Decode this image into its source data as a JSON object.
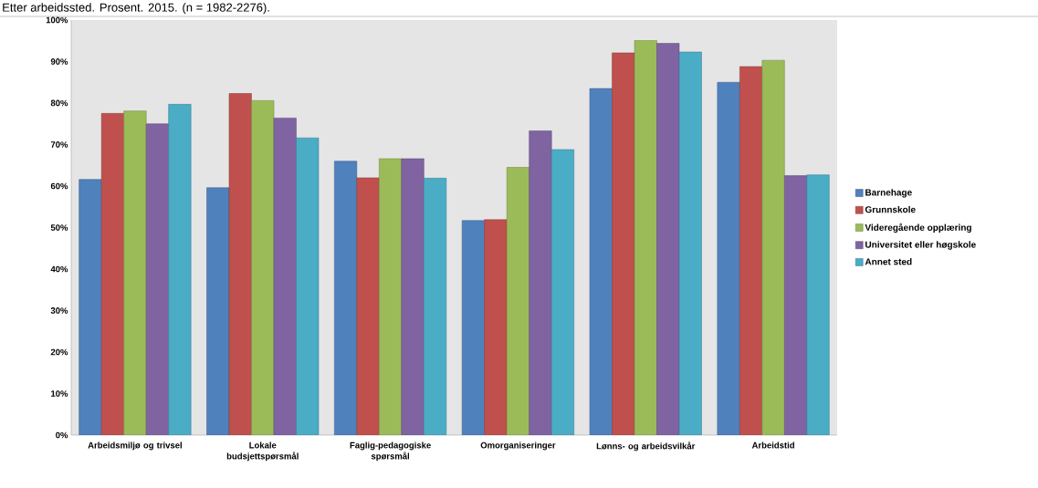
{
  "chart_data": {
    "type": "bar",
    "title": "Etter arbeidssted. Prosent. 2015. (n = 1982-2276).",
    "categories": [
      "Arbeidsmiljø og trivsel",
      "Lokale budsjettspørsmål",
      "Faglig-pedagogiske spørsmål",
      "Omorganiseringer",
      "Lønns- og arbeidsvilkår",
      "Arbeidstid"
    ],
    "series": [
      {
        "name": "Barnehage",
        "color": "#4f81bd",
        "values": [
          61.6,
          59.6,
          66.0,
          51.7,
          83.5,
          85.0
        ]
      },
      {
        "name": "Grunnskole",
        "color": "#c0504d",
        "values": [
          77.5,
          82.3,
          62.0,
          51.9,
          92.1,
          88.8
        ]
      },
      {
        "name": "Videregående opplæring",
        "color": "#9bbb59",
        "values": [
          78.1,
          80.6,
          66.6,
          64.5,
          95.1,
          90.3
        ]
      },
      {
        "name": "Universitet eller høgskole",
        "color": "#8064a2",
        "values": [
          75.0,
          76.4,
          66.6,
          73.3,
          94.4,
          62.5
        ]
      },
      {
        "name": "Annet sted",
        "color": "#4bacc6",
        "values": [
          79.7,
          71.6,
          61.9,
          68.8,
          92.3,
          62.7
        ]
      }
    ],
    "ylim": [
      0,
      100
    ],
    "yticks": [
      {
        "value": 0,
        "label": "0%"
      },
      {
        "value": 10,
        "label": "10%"
      },
      {
        "value": 20,
        "label": "20%"
      },
      {
        "value": 30,
        "label": "30%"
      },
      {
        "value": 40,
        "label": "40%"
      },
      {
        "value": 50,
        "label": "50%"
      },
      {
        "value": 60,
        "label": "60%"
      },
      {
        "value": 70,
        "label": "70%"
      },
      {
        "value": 80,
        "label": "80%"
      },
      {
        "value": 90,
        "label": "90%"
      },
      {
        "value": 100,
        "label": "100%"
      }
    ],
    "legend": "right"
  }
}
